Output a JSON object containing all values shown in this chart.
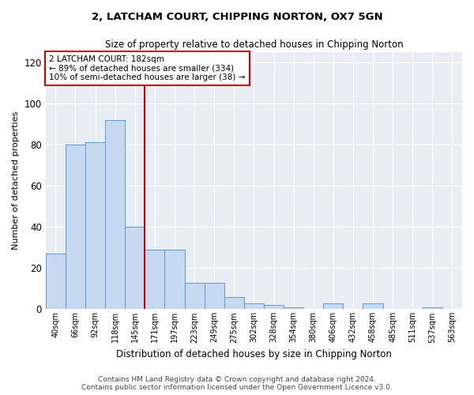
{
  "title": "2, LATCHAM COURT, CHIPPING NORTON, OX7 5GN",
  "subtitle": "Size of property relative to detached houses in Chipping Norton",
  "xlabel": "Distribution of detached houses by size in Chipping Norton",
  "ylabel": "Number of detached properties",
  "bar_values": [
    27,
    80,
    81,
    92,
    40,
    29,
    29,
    13,
    13,
    6,
    3,
    2,
    1,
    0,
    3,
    0,
    3,
    0,
    0,
    1,
    0
  ],
  "categories": [
    "40sqm",
    "66sqm",
    "92sqm",
    "118sqm",
    "145sqm",
    "171sqm",
    "197sqm",
    "223sqm",
    "249sqm",
    "275sqm",
    "302sqm",
    "328sqm",
    "354sqm",
    "380sqm",
    "406sqm",
    "432sqm",
    "458sqm",
    "485sqm",
    "511sqm",
    "537sqm",
    "563sqm"
  ],
  "bar_color": "#c6d9f0",
  "bar_edge_color": "#5b9bd5",
  "bar_linewidth": 0.7,
  "vline_pos": 5.0,
  "vline_color": "#cc0000",
  "ylim": [
    0,
    125
  ],
  "yticks": [
    0,
    20,
    40,
    60,
    80,
    100,
    120
  ],
  "plot_bg_color": "#e8edf4",
  "background_color": "#ffffff",
  "annotation_text": "2 LATCHAM COURT: 182sqm\n← 89% of detached houses are smaller (334)\n10% of semi-detached houses are larger (38) →",
  "annotation_box_color": "#ffffff",
  "annotation_box_edge": "#cc0000",
  "footer_line1": "Contains HM Land Registry data © Crown copyright and database right 2024.",
  "footer_line2": "Contains public sector information licensed under the Open Government Licence v3.0."
}
